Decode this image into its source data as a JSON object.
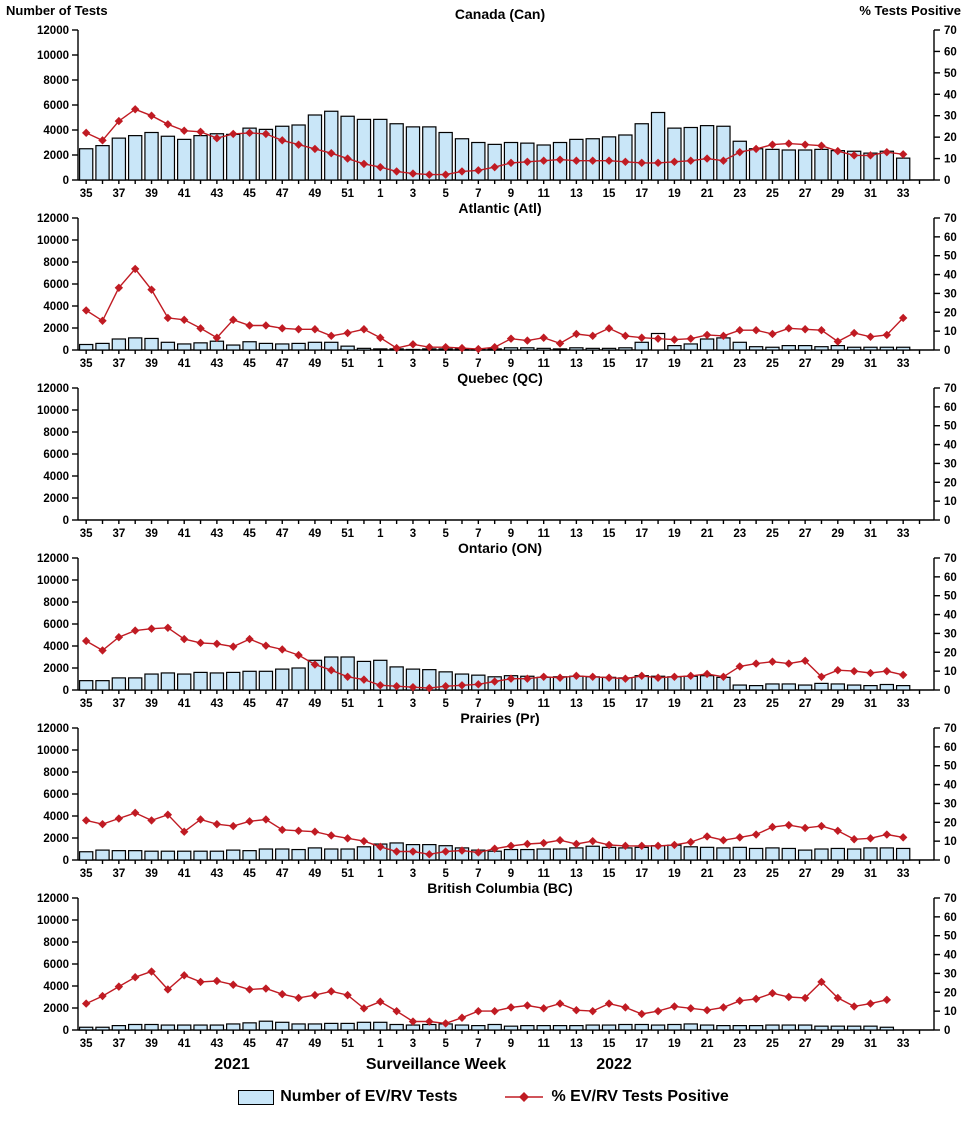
{
  "page": {
    "left_axis_title": "Number of Tests",
    "right_axis_title": "% Tests Positive",
    "x_axis": {
      "year_left": "2021",
      "axis_title": "Surveillance Week",
      "year_right": "2022"
    },
    "legend": {
      "bars_label": "Number of EV/RV Tests",
      "line_label": "% EV/RV Tests Positive"
    },
    "colors": {
      "bar_fill": "#C9E6F8",
      "bar_white": "#FFFFFF",
      "bar_border": "#000000",
      "line": "#C01B23",
      "axis": "#000000",
      "text": "#000000",
      "background": "#FFFFFF"
    }
  },
  "chart_data": {
    "type": "bar+line",
    "x_label": "Surveillance Week",
    "weeks_2021": [
      35,
      36,
      37,
      38,
      39,
      40,
      41,
      42,
      43,
      44,
      45,
      46,
      47,
      48,
      49,
      50,
      51,
      52
    ],
    "weeks_2022": [
      1,
      2,
      3,
      4,
      5,
      6,
      7,
      8,
      9,
      10,
      11,
      12,
      13,
      14,
      15,
      16,
      17,
      18,
      19,
      20,
      21,
      22,
      23,
      24,
      25,
      26,
      27,
      28,
      29,
      30,
      31,
      32,
      33
    ],
    "x_tick_labels": [
      "35",
      "37",
      "39",
      "41",
      "43",
      "45",
      "47",
      "49",
      "51",
      "1",
      "3",
      "5",
      "7",
      "9",
      "11",
      "13",
      "15",
      "17",
      "19",
      "21",
      "23",
      "25",
      "27",
      "29",
      "31",
      "33"
    ],
    "left_axis": {
      "label": "Number of Tests",
      "ticks": [
        0,
        2000,
        4000,
        6000,
        8000,
        10000,
        12000
      ],
      "ylim": [
        0,
        12000
      ]
    },
    "right_axis": {
      "label": "% Tests Positive",
      "ticks": [
        0,
        10,
        20,
        30,
        40,
        50,
        60,
        70
      ],
      "ylim": [
        0,
        70
      ]
    },
    "bar_series_name": "Number of EV/RV Tests",
    "line_series_name": "% EV/RV Tests Positive",
    "charts": [
      {
        "title": "Canada (Can)",
        "tests": [
          2500,
          2750,
          3350,
          3550,
          3800,
          3500,
          3250,
          3550,
          3700,
          3650,
          4150,
          4050,
          4300,
          4400,
          5200,
          5500,
          5100,
          4850,
          4850,
          4500,
          4250,
          4250,
          3800,
          3300,
          3000,
          2850,
          3000,
          2950,
          2800,
          3000,
          3250,
          3300,
          3450,
          3600,
          4500,
          5400,
          4150,
          4200,
          4350,
          4300,
          3100,
          2500,
          2450,
          2400,
          2400,
          2450,
          2350,
          2300,
          2150,
          2300,
          1750
        ],
        "pct_positive": [
          22,
          18.5,
          27.5,
          33,
          30,
          26,
          23,
          22.5,
          19.5,
          21.5,
          22,
          21.5,
          18.5,
          16.5,
          14.5,
          12.5,
          10,
          7.5,
          6,
          4,
          3,
          2.5,
          2.5,
          4,
          4.5,
          6,
          8,
          8.5,
          9,
          9.5,
          9,
          9,
          9,
          8.5,
          8,
          8,
          8.5,
          9,
          10,
          9,
          13,
          14.5,
          16.5,
          17,
          16.5,
          16,
          13.5,
          11.5,
          11.5,
          13,
          12
        ],
        "white_bar_indices": []
      },
      {
        "title": "Atlantic (Atl)",
        "tests": [
          500,
          600,
          1000,
          1100,
          1050,
          700,
          550,
          650,
          800,
          450,
          750,
          600,
          550,
          600,
          700,
          700,
          350,
          150,
          100,
          100,
          50,
          100,
          100,
          100,
          50,
          100,
          200,
          200,
          150,
          100,
          200,
          150,
          150,
          200,
          700,
          1500,
          400,
          550,
          1000,
          1100,
          700,
          300,
          250,
          400,
          400,
          300,
          400,
          250,
          250,
          250,
          250
        ],
        "pct_positive": [
          21,
          15.5,
          33,
          43,
          32,
          17,
          16,
          11.5,
          6.5,
          16,
          13,
          13,
          11.5,
          11,
          11,
          7.5,
          9,
          11,
          6.5,
          1,
          3,
          1.5,
          1.5,
          1,
          0.5,
          1.5,
          6,
          5,
          6.5,
          3.5,
          8.5,
          7.5,
          11.5,
          7.5,
          6.5,
          6,
          5.5,
          6,
          8,
          7.5,
          10.5,
          10.5,
          8.5,
          11.5,
          11,
          10.5,
          4.5,
          9,
          7,
          8,
          17
        ],
        "white_bar_indices": [
          35
        ]
      },
      {
        "title": "Quebec (QC)",
        "tests": [
          null,
          null,
          null,
          null,
          null,
          null,
          null,
          null,
          null,
          null,
          null,
          null,
          null,
          null,
          null,
          null,
          null,
          null,
          null,
          null,
          null,
          null,
          null,
          null,
          null,
          null,
          null,
          null,
          null,
          null,
          null,
          null,
          null,
          null,
          null,
          null,
          null,
          null,
          null,
          null,
          null,
          null,
          null,
          null,
          null,
          null,
          null,
          null,
          null,
          null,
          null
        ],
        "pct_positive": [
          null,
          null,
          null,
          null,
          null,
          null,
          null,
          null,
          null,
          null,
          null,
          null,
          null,
          null,
          null,
          null,
          null,
          null,
          null,
          null,
          null,
          null,
          null,
          null,
          null,
          null,
          null,
          null,
          null,
          null,
          null,
          null,
          null,
          null,
          null,
          null,
          null,
          null,
          null,
          null,
          null,
          null,
          null,
          null,
          null,
          null,
          null,
          null,
          null,
          null,
          null
        ],
        "white_bar_indices": []
      },
      {
        "title": "Ontario (ON)",
        "tests": [
          850,
          850,
          1100,
          1100,
          1450,
          1550,
          1450,
          1600,
          1550,
          1600,
          1700,
          1700,
          1900,
          2000,
          2700,
          3000,
          3000,
          2600,
          2700,
          2100,
          1900,
          1850,
          1650,
          1450,
          1350,
          1200,
          1300,
          1250,
          1150,
          1200,
          1250,
          1200,
          1150,
          1100,
          1300,
          1250,
          1200,
          1250,
          1300,
          1150,
          450,
          400,
          550,
          550,
          450,
          600,
          550,
          450,
          400,
          500,
          400
        ],
        "pct_positive": [
          26,
          21,
          28,
          31.5,
          32.5,
          33,
          27,
          25,
          24.5,
          23,
          27,
          23.5,
          21.5,
          18.5,
          13.5,
          10.5,
          7,
          5.5,
          2.5,
          2,
          1.5,
          1,
          2,
          2.5,
          3,
          4.5,
          6,
          6,
          7,
          6.5,
          7.5,
          7,
          6.5,
          6,
          7.5,
          6.5,
          7,
          7.5,
          8.5,
          7,
          12.5,
          14,
          15,
          14,
          15.5,
          7,
          10.5,
          10,
          9,
          10,
          8
        ],
        "white_bar_indices": []
      },
      {
        "title": "Prairies (Pr)",
        "tests": [
          750,
          900,
          850,
          850,
          800,
          800,
          800,
          800,
          800,
          900,
          850,
          1000,
          1000,
          950,
          1100,
          1000,
          1000,
          1200,
          1450,
          1550,
          1400,
          1400,
          1300,
          1100,
          900,
          800,
          950,
          950,
          1000,
          1000,
          1100,
          1250,
          1150,
          1100,
          1150,
          1300,
          1350,
          1200,
          1150,
          1100,
          1150,
          1050,
          1100,
          1050,
          900,
          1000,
          1050,
          1000,
          1100,
          1100,
          1050
        ],
        "pct_positive": [
          21,
          19,
          22,
          25,
          21,
          24,
          15,
          21.5,
          19,
          18,
          20.5,
          21.5,
          16,
          15.5,
          15,
          13,
          11.5,
          10,
          7,
          4.5,
          4.5,
          3,
          4.5,
          5,
          4,
          6,
          7.5,
          8.5,
          9,
          10.5,
          8.5,
          10,
          8,
          7.5,
          7.5,
          7.5,
          8,
          9.5,
          12.5,
          10.5,
          12,
          13.5,
          17.5,
          18.5,
          17,
          18,
          15.5,
          11,
          11.5,
          13.5,
          12
        ],
        "white_bar_indices": []
      },
      {
        "title": "British Columbia (BC)",
        "tests": [
          250,
          250,
          400,
          500,
          500,
          450,
          450,
          450,
          450,
          550,
          650,
          800,
          700,
          550,
          550,
          600,
          600,
          700,
          700,
          500,
          450,
          500,
          550,
          450,
          400,
          500,
          350,
          400,
          400,
          400,
          400,
          450,
          450,
          500,
          500,
          450,
          500,
          550,
          450,
          400,
          400,
          400,
          450,
          450,
          450,
          350,
          350,
          350,
          350,
          250,
          null
        ],
        "pct_positive": [
          14,
          18,
          23,
          28,
          31,
          21.5,
          29,
          25.5,
          26,
          24,
          21.5,
          22,
          19,
          17,
          18.5,
          20.5,
          18.5,
          11.5,
          15,
          10,
          4.5,
          4.5,
          3.5,
          6.5,
          10,
          10,
          12,
          13,
          11.5,
          14,
          10.5,
          10,
          14,
          12,
          8.5,
          10,
          12.5,
          11.5,
          10.5,
          12,
          15.5,
          16.5,
          19.5,
          17.5,
          17,
          25.5,
          17,
          12.5,
          14,
          16,
          null
        ],
        "white_bar_indices": []
      }
    ]
  }
}
